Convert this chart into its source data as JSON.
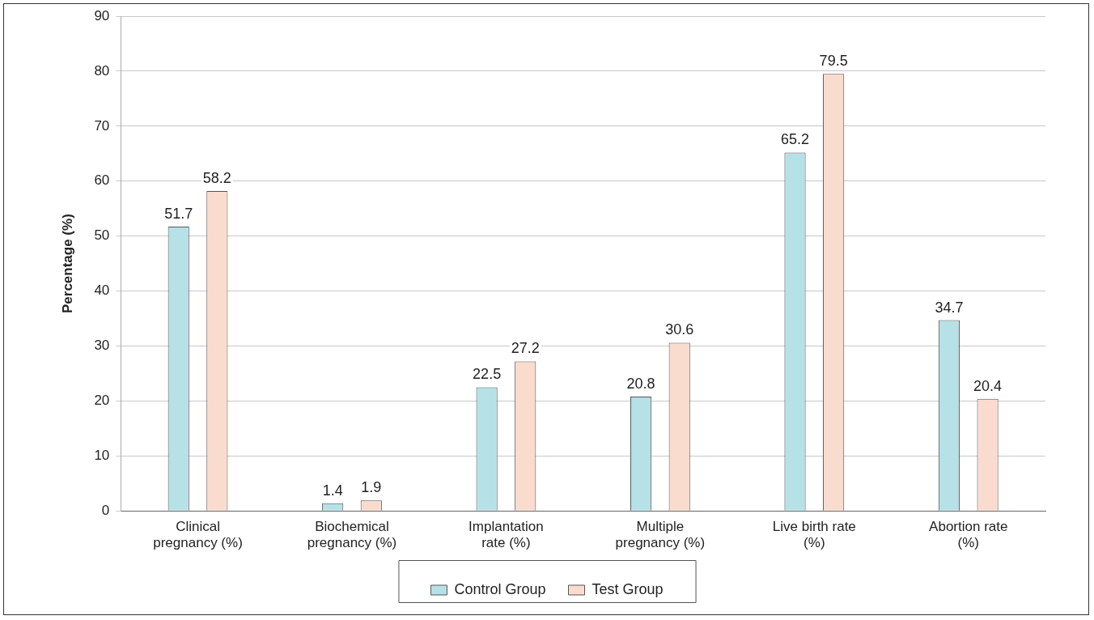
{
  "chart_data": {
    "type": "bar",
    "ylabel": "Percentage (%)",
    "categories": [
      "Clinical pregnancy (%)",
      "Biochemical pregnancy (%)",
      "Implantation rate (%)",
      "Multiple pregnancy (%)",
      "Live birth rate (%)",
      "Abortion rate (%)"
    ],
    "series": [
      {
        "name": "Control Group",
        "color": "#b6e1e6",
        "values": [
          51.7,
          1.4,
          22.5,
          20.8,
          65.2,
          34.7
        ]
      },
      {
        "name": "Test Group",
        "color": "#fadccf",
        "values": [
          58.2,
          1.9,
          27.2,
          30.6,
          79.5,
          20.4
        ]
      }
    ],
    "ylim": [
      0,
      90
    ],
    "yticks": [
      0,
      10,
      20,
      30,
      40,
      50,
      60,
      70,
      80,
      90
    ],
    "grid": "y",
    "legend": "bottom",
    "data_labels": true
  }
}
